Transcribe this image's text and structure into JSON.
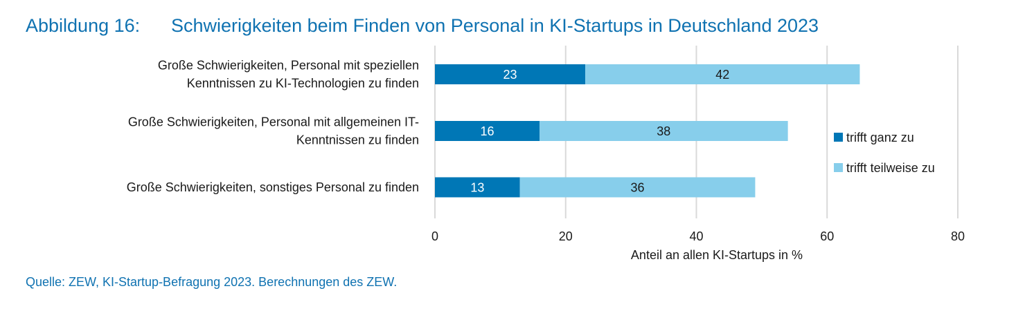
{
  "figure": {
    "number": "Abbildung 16:",
    "title": "Schwierigkeiten beim Finden von Personal in KI-Startups in Deutschland 2023",
    "source": "Quelle: ZEW, KI-Startup-Befragung 2023. Berechnungen des ZEW."
  },
  "colors": {
    "title": "#0f72b1",
    "series_1": "#0077b6",
    "series_2": "#87ceeb",
    "grid": "#d9d9d9"
  },
  "chart_data": {
    "type": "bar",
    "orientation": "horizontal",
    "stacked": true,
    "title": "Schwierigkeiten beim Finden von Personal in KI-Startups in Deutschland 2023",
    "categories": [
      [
        "Große Schwierigkeiten, Personal mit speziellen",
        "Kenntnissen zu KI-Technologien zu finden"
      ],
      [
        "Große Schwierigkeiten, Personal mit allgemeinen IT-",
        "Kenntnissen zu finden"
      ],
      [
        "Große Schwierigkeiten, sonstiges Personal zu finden"
      ]
    ],
    "series": [
      {
        "name": "trifft ganz zu",
        "values": [
          23,
          16,
          13
        ],
        "color": "#0077b6",
        "label_color": "#ffffff"
      },
      {
        "name": "trifft teilweise zu",
        "values": [
          42,
          38,
          36
        ],
        "color": "#87ceeb",
        "label_color": "#1a1a1a"
      }
    ],
    "xlabel": "Anteil an allen KI-Startups in %",
    "ylabel": "",
    "xlim": [
      0,
      80
    ],
    "xticks": [
      0,
      20,
      40,
      60,
      80
    ],
    "grid": true,
    "legend": "right"
  }
}
